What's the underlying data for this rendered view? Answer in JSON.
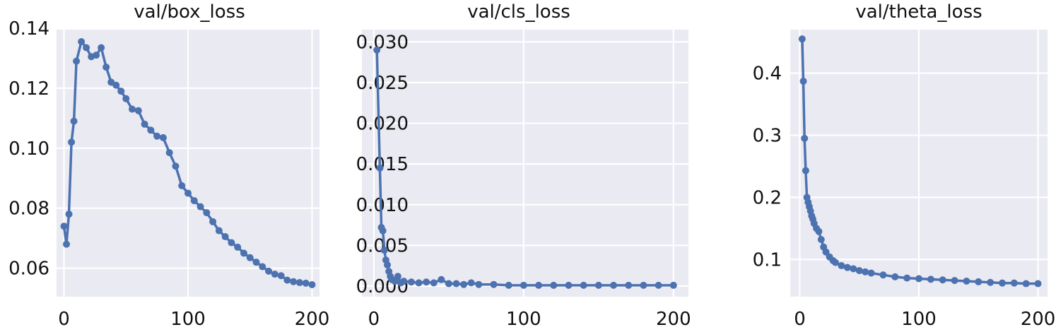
{
  "chart_data": [
    {
      "type": "line",
      "title": "val/box_loss",
      "xlabel": "",
      "ylabel": "",
      "grid": true,
      "legend": "none",
      "xlim": [
        -6,
        206
      ],
      "ylim": [
        0.0505,
        0.1395
      ],
      "xticks": [
        0,
        100,
        200
      ],
      "xtick_labels": [
        "0",
        "100",
        "200"
      ],
      "yticks": [
        0.06,
        0.08,
        0.1,
        0.12,
        0.14
      ],
      "ytick_labels": [
        "0.06",
        "0.08",
        "0.10",
        "0.12",
        "0.14"
      ],
      "series": [
        {
          "x": [
            0,
            2,
            4,
            6,
            8,
            10,
            14,
            18,
            22,
            26,
            30,
            34,
            38,
            42,
            46,
            50,
            55,
            60,
            65,
            70,
            75,
            80,
            85,
            90,
            95,
            100,
            105,
            110,
            115,
            120,
            125,
            130,
            135,
            140,
            145,
            150,
            155,
            160,
            165,
            170,
            175,
            180,
            185,
            190,
            195,
            200
          ],
          "y": [
            0.074,
            0.068,
            0.078,
            0.102,
            0.109,
            0.129,
            0.1355,
            0.1335,
            0.1305,
            0.131,
            0.1335,
            0.127,
            0.122,
            0.121,
            0.119,
            0.1165,
            0.113,
            0.1125,
            0.108,
            0.106,
            0.104,
            0.1035,
            0.0985,
            0.094,
            0.0875,
            0.085,
            0.0825,
            0.0805,
            0.0785,
            0.0755,
            0.0725,
            0.0705,
            0.0685,
            0.067,
            0.065,
            0.0635,
            0.062,
            0.0605,
            0.059,
            0.058,
            0.0575,
            0.056,
            0.0555,
            0.0552,
            0.055,
            0.0545
          ]
        }
      ]
    },
    {
      "type": "line",
      "title": "val/cls_loss",
      "xlabel": "",
      "ylabel": "",
      "grid": true,
      "legend": "none",
      "xlim": [
        -8,
        210
      ],
      "ylim": [
        -0.0013,
        0.0315
      ],
      "xticks": [
        0,
        100,
        200
      ],
      "xtick_labels": [
        "0",
        "100",
        "200"
      ],
      "yticks": [
        0.0,
        0.005,
        0.01,
        0.015,
        0.02,
        0.025,
        0.03
      ],
      "ytick_labels": [
        "0.000",
        "0.005",
        "0.010",
        "0.015",
        "0.020",
        "0.025",
        "0.030"
      ],
      "series": [
        {
          "x": [
            2,
            4,
            5,
            6,
            7,
            8,
            9,
            10,
            11,
            12,
            14,
            16,
            18,
            20,
            25,
            30,
            35,
            40,
            45,
            50,
            55,
            60,
            65,
            70,
            80,
            90,
            100,
            110,
            120,
            130,
            140,
            150,
            160,
            170,
            180,
            190,
            200
          ],
          "y": [
            0.029,
            0.0145,
            0.0072,
            0.0068,
            0.0044,
            0.0032,
            0.0026,
            0.0018,
            0.0012,
            0.0008,
            0.0006,
            0.0012,
            0.0004,
            0.0006,
            0.0005,
            0.0004,
            0.0005,
            0.0004,
            0.0008,
            0.0003,
            0.0003,
            0.0002,
            0.0004,
            0.0002,
            0.0002,
            0.0001,
            0.0001,
            0.0001,
            0.0001,
            0.0001,
            0.0001,
            0.0001,
            0.0001,
            0.0001,
            0.0001,
            0.0001,
            0.0001
          ]
        }
      ]
    },
    {
      "type": "line",
      "title": "val/theta_loss",
      "xlabel": "",
      "ylabel": "",
      "grid": true,
      "legend": "none",
      "xlim": [
        -8,
        208
      ],
      "ylim": [
        0.04,
        0.47
      ],
      "xticks": [
        0,
        100,
        200
      ],
      "xtick_labels": [
        "0",
        "100",
        "200"
      ],
      "yticks": [
        0.1,
        0.2,
        0.3,
        0.4
      ],
      "ytick_labels": [
        "0.1",
        "0.2",
        "0.3",
        "0.4"
      ],
      "series": [
        {
          "x": [
            2,
            3,
            4,
            5,
            6,
            7,
            8,
            9,
            10,
            11,
            12,
            14,
            16,
            18,
            20,
            22,
            25,
            28,
            30,
            35,
            40,
            45,
            50,
            55,
            60,
            70,
            80,
            90,
            100,
            110,
            120,
            130,
            140,
            150,
            160,
            170,
            180,
            190,
            200
          ],
          "y": [
            0.455,
            0.387,
            0.295,
            0.243,
            0.2,
            0.192,
            0.185,
            0.178,
            0.17,
            0.165,
            0.158,
            0.15,
            0.145,
            0.132,
            0.12,
            0.112,
            0.104,
            0.098,
            0.095,
            0.09,
            0.087,
            0.085,
            0.082,
            0.08,
            0.078,
            0.075,
            0.072,
            0.07,
            0.069,
            0.068,
            0.067,
            0.066,
            0.065,
            0.064,
            0.063,
            0.062,
            0.062,
            0.061,
            0.061
          ]
        }
      ]
    }
  ],
  "colors": {
    "plot_background": "#EAEAF2",
    "grid": "#FFFFFF",
    "line": "#4C72B0",
    "text": "#111111"
  }
}
